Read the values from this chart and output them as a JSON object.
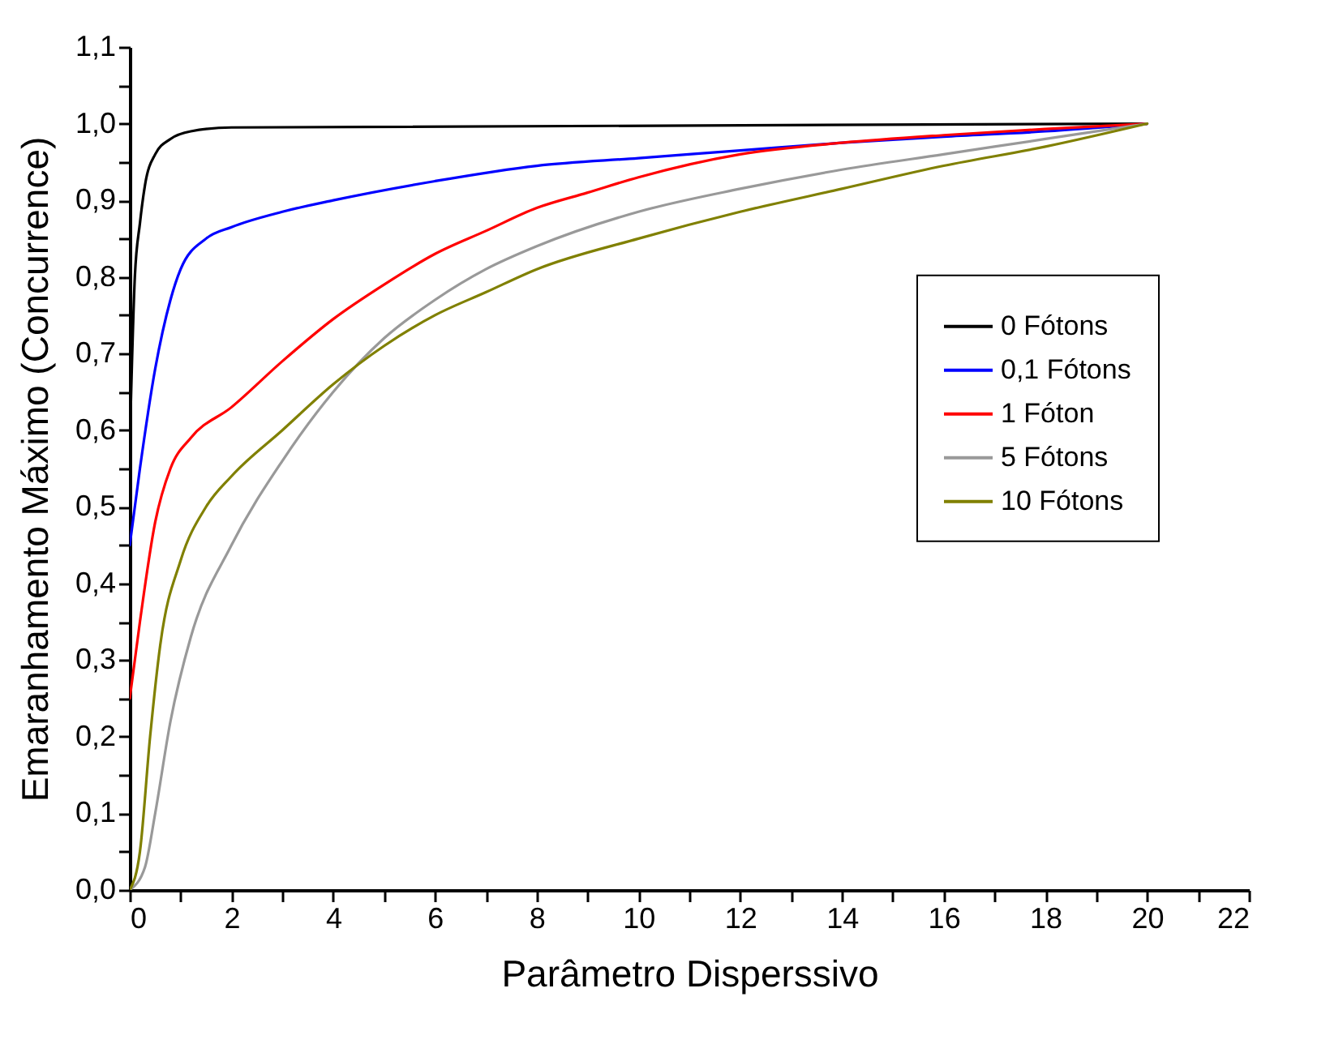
{
  "chart_data": {
    "type": "line",
    "xlabel": "Parâmetro Disperssivo",
    "ylabel": "Emaranhamento Máximo (Concurrence)",
    "xlim": [
      0,
      22
    ],
    "xticks": [
      0,
      {
        "value": 1,
        "label": null
      },
      2,
      {
        "value": 3,
        "label": null
      },
      4,
      {
        "value": 5,
        "label": null
      },
      6,
      {
        "value": 7,
        "label": null
      },
      8,
      {
        "value": 9,
        "label": null
      },
      10,
      {
        "value": 11,
        "label": null
      },
      12,
      {
        "value": 13,
        "label": null
      },
      14,
      {
        "value": 15,
        "label": null
      },
      16,
      {
        "value": 17,
        "label": null
      },
      18,
      {
        "value": 19,
        "label": null
      },
      20,
      {
        "value": 21,
        "label": null
      },
      22
    ],
    "ylim": [
      0,
      1.1
    ],
    "yticks": [
      {
        "value": 0,
        "label": "0,0"
      },
      {
        "value": 0.05,
        "label": null
      },
      {
        "value": 0.1,
        "label": "0,1"
      },
      {
        "value": 0.15,
        "label": null
      },
      {
        "value": 0.2,
        "label": "0,2"
      },
      {
        "value": 0.25,
        "label": null
      },
      {
        "value": 0.3,
        "label": "0,3"
      },
      {
        "value": 0.35,
        "label": null
      },
      {
        "value": 0.4,
        "label": "0,4"
      },
      {
        "value": 0.45,
        "label": null
      },
      {
        "value": 0.5,
        "label": "0,5"
      },
      {
        "value": 0.55,
        "label": null
      },
      {
        "value": 0.6,
        "label": "0,6"
      },
      {
        "value": 0.65,
        "label": null
      },
      {
        "value": 0.7,
        "label": "0,7"
      },
      {
        "value": 0.75,
        "label": null
      },
      {
        "value": 0.8,
        "label": "0,8"
      },
      {
        "value": 0.85,
        "label": null
      },
      {
        "value": 0.9,
        "label": "0,9"
      },
      {
        "value": 0.95,
        "label": null
      },
      {
        "value": 1.0,
        "label": "1,0"
      },
      {
        "value": 1.05,
        "label": null
      },
      {
        "value": 1.1,
        "label": "1,1"
      }
    ],
    "grid": false,
    "legend": "right",
    "marker": "none",
    "line_style": "solid",
    "series": [
      {
        "name": "0 Fótons",
        "color": "#000000",
        "x": [
          0,
          0.1,
          0.2,
          0.3,
          0.5,
          0.8,
          1.2,
          2,
          20
        ],
        "values": [
          0.58,
          0.8,
          0.87,
          0.92,
          0.96,
          0.98,
          0.99,
          0.995,
          1.0
        ]
      },
      {
        "name": "0,1 Fótons",
        "color": "#0000ff",
        "x": [
          0,
          0.2,
          0.5,
          0.8,
          1,
          1.5,
          2,
          3,
          4,
          6,
          8,
          10,
          12,
          14,
          16,
          18,
          20
        ],
        "values": [
          0.45,
          0.55,
          0.68,
          0.77,
          0.81,
          0.85,
          0.865,
          0.885,
          0.9,
          0.925,
          0.945,
          0.955,
          0.965,
          0.975,
          0.983,
          0.99,
          1.0
        ]
      },
      {
        "name": "1 Fóton",
        "color": "#ff0000",
        "x": [
          0,
          0.2,
          0.5,
          0.8,
          1.2,
          2,
          3,
          4,
          5,
          6,
          7,
          8,
          9,
          10,
          12,
          14,
          16,
          18,
          20
        ],
        "values": [
          0.25,
          0.35,
          0.48,
          0.55,
          0.59,
          0.63,
          0.69,
          0.745,
          0.79,
          0.83,
          0.86,
          0.89,
          0.91,
          0.93,
          0.96,
          0.975,
          0.985,
          0.993,
          1.0
        ]
      },
      {
        "name": "5 Fótons",
        "color": "#999999",
        "x": [
          0,
          0.3,
          0.5,
          0.8,
          1.2,
          2,
          3,
          4,
          5,
          6,
          7,
          8,
          10,
          12,
          14,
          16,
          18,
          20
        ],
        "values": [
          0.0,
          0.03,
          0.1,
          0.22,
          0.33,
          0.45,
          0.56,
          0.65,
          0.72,
          0.77,
          0.81,
          0.84,
          0.885,
          0.915,
          0.94,
          0.96,
          0.98,
          1.0
        ]
      },
      {
        "name": "10 Fótons",
        "color": "#808000",
        "x": [
          0,
          0.2,
          0.4,
          0.6,
          1,
          1.5,
          2,
          3,
          4,
          5,
          6,
          7,
          8,
          10,
          12,
          14,
          16,
          18,
          20
        ],
        "values": [
          0.0,
          0.05,
          0.2,
          0.32,
          0.43,
          0.5,
          0.54,
          0.6,
          0.66,
          0.71,
          0.75,
          0.78,
          0.81,
          0.85,
          0.885,
          0.915,
          0.945,
          0.97,
          1.0
        ]
      }
    ]
  }
}
